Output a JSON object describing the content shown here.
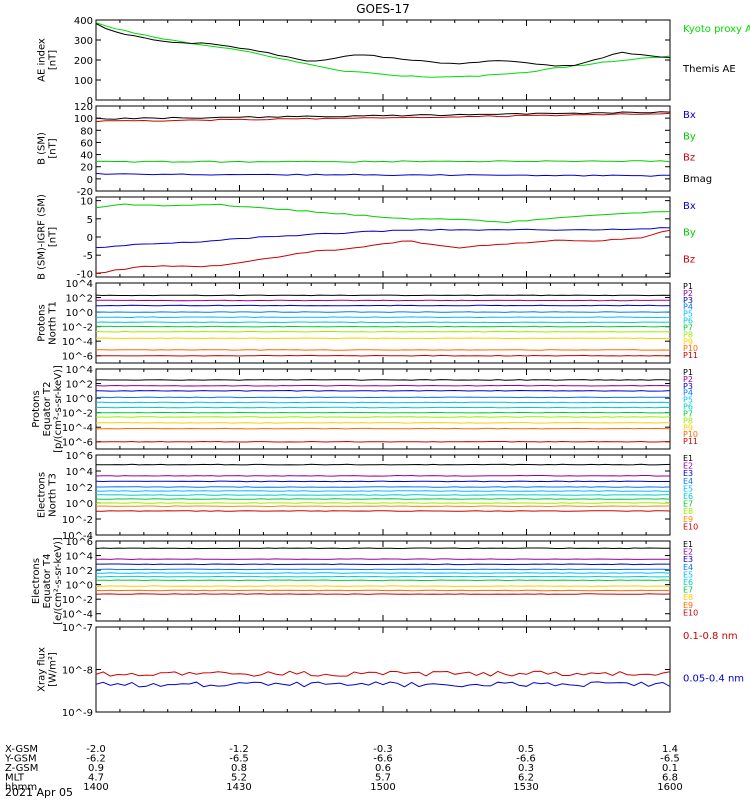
{
  "title": "GOES-17",
  "date_label": "2021 Apr 05",
  "ephemeris": {
    "labels": [
      "X-GSM",
      "Y-GSM",
      "Z-GSM",
      "MLT",
      "hhmm"
    ],
    "columns": [
      [
        "-2.0",
        "-6.2",
        "0.9",
        "4.7",
        "1400"
      ],
      [
        "-1.2",
        "-6.5",
        "0.8",
        "5.2",
        "1430"
      ],
      [
        "-0.3",
        "-6.6",
        "0.6",
        "5.7",
        "1500"
      ],
      [
        "0.5",
        "-6.6",
        "0.3",
        "6.2",
        "1530"
      ],
      [
        "1.4",
        "-6.5",
        "0.1",
        "6.8",
        "1600"
      ]
    ]
  },
  "chart_data": [
    {
      "type": "line",
      "panel": "ae",
      "ylabel": [
        "AE index",
        "[nT]"
      ],
      "ylim": [
        0,
        400
      ],
      "yticks": [
        "0",
        "100",
        "200",
        "300",
        "400"
      ],
      "x_start_hhmm": "1400",
      "x_end_hhmm": "1600",
      "series": [
        {
          "name": "Kyoto proxy AE",
          "color": "#00dd00",
          "x_min": [
            0,
            5,
            15,
            30,
            40,
            50,
            60,
            65,
            70,
            80,
            90,
            100,
            110,
            120
          ],
          "values": [
            390,
            350,
            300,
            250,
            200,
            150,
            130,
            120,
            115,
            120,
            140,
            170,
            200,
            220
          ]
        },
        {
          "name": "Themis AE",
          "color": "#000000",
          "x_min": [
            0,
            5,
            15,
            25,
            35,
            45,
            55,
            65,
            75,
            85,
            95,
            100,
            110,
            115,
            120
          ],
          "values": [
            380,
            330,
            290,
            280,
            240,
            190,
            230,
            200,
            180,
            200,
            170,
            175,
            240,
            220,
            215
          ]
        }
      ]
    },
    {
      "type": "line",
      "panel": "b_sm",
      "ylabel": [
        "B (SM)",
        "[nT]"
      ],
      "ylim": [
        -20,
        120
      ],
      "yticks": [
        "-20",
        "0",
        "20",
        "40",
        "60",
        "80",
        "100",
        "120"
      ],
      "series": [
        {
          "name": "Bx",
          "color": "#0000cc",
          "x_min": [
            0,
            120
          ],
          "values": [
            8,
            5
          ]
        },
        {
          "name": "By",
          "color": "#00cc00",
          "x_min": [
            0,
            120
          ],
          "values": [
            28,
            29
          ]
        },
        {
          "name": "Bz",
          "color": "#cc0000",
          "x_min": [
            0,
            60,
            120
          ],
          "values": [
            95,
            100,
            108
          ]
        },
        {
          "name": "Bmag",
          "color": "#000000",
          "x_min": [
            0,
            60,
            120
          ],
          "values": [
            99,
            104,
            110
          ]
        }
      ]
    },
    {
      "type": "line",
      "panel": "b_minus_igrf",
      "ylabel": [
        "B (SM)-IGRF (SM)",
        "[nT]"
      ],
      "ylim": [
        -11,
        11
      ],
      "yticks": [
        "-10",
        "-5",
        "0",
        "5",
        "10"
      ],
      "series": [
        {
          "name": "Bx",
          "color": "#0000cc",
          "x_min": [
            0,
            10,
            20,
            35,
            50,
            65,
            80,
            95,
            105,
            120
          ],
          "values": [
            -3,
            -2,
            -1.5,
            0,
            1,
            2,
            2,
            2,
            2,
            2.5
          ]
        },
        {
          "name": "By",
          "color": "#00cc00",
          "x_min": [
            0,
            5,
            15,
            25,
            35,
            45,
            55,
            65,
            75,
            85,
            95,
            105,
            120
          ],
          "values": [
            8,
            9,
            8.5,
            9,
            8,
            7,
            6,
            5,
            5,
            4,
            5,
            6,
            7
          ]
        },
        {
          "name": "Bz",
          "color": "#cc0000",
          "x_min": [
            0,
            10,
            25,
            35,
            45,
            55,
            65,
            75,
            85,
            95,
            105,
            115,
            120
          ],
          "values": [
            -10,
            -8,
            -8,
            -6,
            -4,
            -3,
            -1,
            -3,
            -2,
            -1,
            -1,
            0,
            2
          ]
        }
      ]
    },
    {
      "type": "line",
      "panel": "protons_t1",
      "ylabel": [
        "Protons",
        "North T1"
      ],
      "ylog": true,
      "ylim_exp": [
        -7,
        4
      ],
      "yticks": [
        "10^4",
        "10^2",
        "10^0",
        "10^-2",
        "10^-4",
        "10^-6"
      ],
      "series": [
        {
          "name": "P1",
          "color": "#000000",
          "level_exp": 2.3
        },
        {
          "name": "P2",
          "color": "#990099",
          "level_exp": 1.6
        },
        {
          "name": "P3",
          "color": "#0000cc",
          "level_exp": 0.9
        },
        {
          "name": "P4",
          "color": "#0077ff",
          "level_exp": 0.0
        },
        {
          "name": "P5",
          "color": "#00bbff",
          "level_exp": -0.7
        },
        {
          "name": "P6",
          "color": "#00cccc",
          "level_exp": -1.4
        },
        {
          "name": "P7",
          "color": "#00cc33",
          "level_exp": -2.0
        },
        {
          "name": "P8",
          "color": "#99ee00",
          "level_exp": -2.7
        },
        {
          "name": "P9",
          "color": "#ffcc00",
          "level_exp": -3.6
        },
        {
          "name": "P10",
          "color": "#ff6600",
          "level_exp": -5.2
        },
        {
          "name": "P11",
          "color": "#cc0000",
          "level_exp": -6.0
        }
      ]
    },
    {
      "type": "line",
      "panel": "protons_t2",
      "ylabel": [
        "Protons",
        "Equator T2",
        "[p/(cm²-s-sr-keV)]"
      ],
      "ylog": true,
      "ylim_exp": [
        -7,
        4
      ],
      "yticks": [
        "10^4",
        "10^2",
        "10^0",
        "10^-2",
        "10^-4",
        "10^-6"
      ],
      "series": [
        {
          "name": "P1",
          "color": "#000000",
          "level_exp": 2.5
        },
        {
          "name": "P2",
          "color": "#990099",
          "level_exp": 1.7
        },
        {
          "name": "P3",
          "color": "#0000cc",
          "level_exp": 1.0
        },
        {
          "name": "P4",
          "color": "#0077ff",
          "level_exp": 0.1
        },
        {
          "name": "P5",
          "color": "#00bbff",
          "level_exp": -0.6
        },
        {
          "name": "P6",
          "color": "#00cccc",
          "level_exp": -1.3
        },
        {
          "name": "P7",
          "color": "#00cc33",
          "level_exp": -2.0
        },
        {
          "name": "P8",
          "color": "#99ee00",
          "level_exp": -2.6
        },
        {
          "name": "P9",
          "color": "#ffcc00",
          "level_exp": -3.4
        },
        {
          "name": "P10",
          "color": "#ff6600",
          "level_exp": -4.2
        },
        {
          "name": "P11",
          "color": "#cc0000",
          "level_exp": -6.0
        }
      ]
    },
    {
      "type": "line",
      "panel": "electrons_t3",
      "ylabel": [
        "Electrons",
        "North T3"
      ],
      "ylog": true,
      "ylim_exp": [
        -4,
        6
      ],
      "yticks": [
        "10^6",
        "10^4",
        "10^2",
        "10^0",
        "10^-2",
        "10^-4"
      ],
      "series": [
        {
          "name": "E1",
          "color": "#000000",
          "level_exp": 4.8
        },
        {
          "name": "E2",
          "color": "#990099",
          "level_exp": 3.4
        },
        {
          "name": "E3",
          "color": "#0000cc",
          "level_exp": 2.7
        },
        {
          "name": "E4",
          "color": "#0077ff",
          "level_exp": 2.0
        },
        {
          "name": "E5",
          "color": "#00bbff",
          "level_exp": 1.5
        },
        {
          "name": "E6",
          "color": "#00cccc",
          "level_exp": 1.0
        },
        {
          "name": "E7",
          "color": "#00cc33",
          "level_exp": 0.5
        },
        {
          "name": "E8",
          "color": "#99ee00",
          "level_exp": 0.0
        },
        {
          "name": "E9",
          "color": "#ff8800",
          "level_exp": -0.4
        },
        {
          "name": "E10",
          "color": "#cc0000",
          "level_exp": -1.0
        }
      ]
    },
    {
      "type": "line",
      "panel": "electrons_t4",
      "ylabel": [
        "Electrons",
        "Equator T4",
        "[e/(cm²-s-sr-keV)]"
      ],
      "ylog": true,
      "ylim_exp": [
        -5,
        6
      ],
      "yticks": [
        "10^6",
        "10^4",
        "10^2",
        "10^0",
        "10^-2",
        "10^-4"
      ],
      "series": [
        {
          "name": "E1",
          "color": "#000000",
          "level_exp": 5.0
        },
        {
          "name": "E2",
          "color": "#990099",
          "level_exp": 3.5
        },
        {
          "name": "E3",
          "color": "#0000cc",
          "level_exp": 2.8
        },
        {
          "name": "E4",
          "color": "#0077ff",
          "level_exp": 2.1
        },
        {
          "name": "E5",
          "color": "#00bbff",
          "level_exp": 1.6
        },
        {
          "name": "E6",
          "color": "#00cccc",
          "level_exp": 1.1
        },
        {
          "name": "E7",
          "color": "#00cc33",
          "level_exp": 0.6
        },
        {
          "name": "E8",
          "color": "#ffcc00",
          "level_exp": -0.2
        },
        {
          "name": "E9",
          "color": "#ff6600",
          "level_exp": -0.8
        },
        {
          "name": "E10",
          "color": "#cc0000",
          "level_exp": -1.3
        }
      ]
    },
    {
      "type": "line",
      "panel": "xray",
      "ylabel": [
        "Xray flux",
        "[W/m²]"
      ],
      "ylog": true,
      "ylim_exp": [
        -9,
        -7
      ],
      "yticks": [
        "10^-7",
        "10^-8",
        "10^-9"
      ],
      "series": [
        {
          "name": "0.1-0.8 nm",
          "color": "#cc0000",
          "level_exp": -8.1
        },
        {
          "name": "0.05-0.4 nm",
          "color": "#0000cc",
          "level_exp": -8.35
        }
      ]
    }
  ]
}
